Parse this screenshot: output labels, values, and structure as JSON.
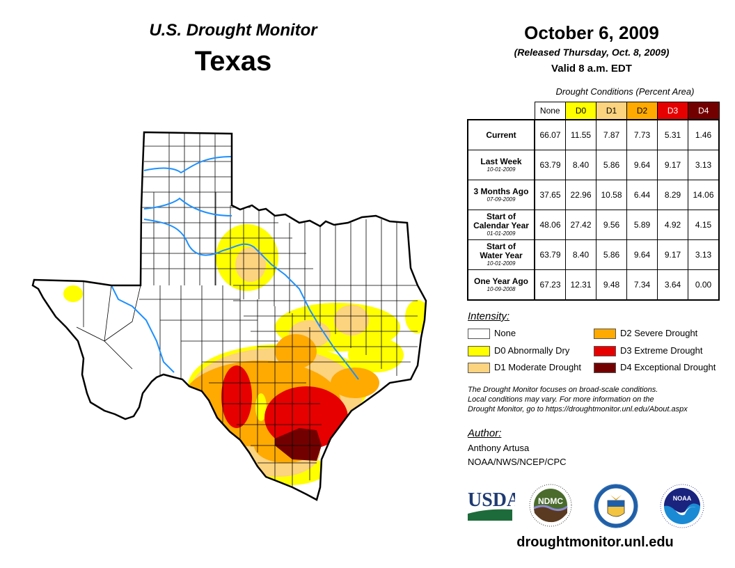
{
  "header": {
    "title": "U.S. Drought Monitor",
    "region": "Texas",
    "date": "October 6, 2009",
    "released": "(Released Thursday, Oct. 8, 2009)",
    "valid": "Valid 8 a.m. EDT"
  },
  "table": {
    "title": "Drought Conditions (Percent Area)",
    "columns": [
      "None",
      "D0",
      "D1",
      "D2",
      "D3",
      "D4"
    ],
    "column_colors": [
      "#ffffff",
      "#ffff00",
      "#fcd37f",
      "#ffaa00",
      "#e60000",
      "#730000"
    ],
    "rows": [
      {
        "label": "Current",
        "date": "",
        "values": [
          "66.07",
          "11.55",
          "7.87",
          "7.73",
          "5.31",
          "1.46"
        ]
      },
      {
        "label": "Last Week",
        "date": "10-01-2009",
        "values": [
          "63.79",
          "8.40",
          "5.86",
          "9.64",
          "9.17",
          "3.13"
        ]
      },
      {
        "label": "3 Months Ago",
        "date": "07-09-2009",
        "values": [
          "37.65",
          "22.96",
          "10.58",
          "6.44",
          "8.29",
          "14.06"
        ]
      },
      {
        "label_line1": "Start of",
        "label": "Calendar Year",
        "date": "01-01-2009",
        "values": [
          "48.06",
          "27.42",
          "9.56",
          "5.89",
          "4.92",
          "4.15"
        ]
      },
      {
        "label_line1": "Start of",
        "label": "Water Year",
        "date": "10-01-2009",
        "values": [
          "63.79",
          "8.40",
          "5.86",
          "9.64",
          "9.17",
          "3.13"
        ]
      },
      {
        "label": "One Year Ago",
        "date": "10-09-2008",
        "values": [
          "67.23",
          "12.31",
          "9.48",
          "7.34",
          "3.64",
          "0.00"
        ]
      }
    ]
  },
  "legend": {
    "title": "Intensity:",
    "items": [
      {
        "label": "None",
        "color": "#ffffff"
      },
      {
        "label": "D0 Abnormally Dry",
        "color": "#ffff00"
      },
      {
        "label": "D1 Moderate Drought",
        "color": "#fcd37f"
      },
      {
        "label": "D2 Severe Drought",
        "color": "#ffaa00"
      },
      {
        "label": "D3 Extreme Drought",
        "color": "#e60000"
      },
      {
        "label": "D4 Exceptional Drought",
        "color": "#730000"
      }
    ]
  },
  "note": {
    "line1": "The Drought Monitor focuses on broad-scale conditions.",
    "line2": "Local conditions may vary. For more information on the",
    "line3": "Drought Monitor, go to https://droughtmonitor.unl.edu/About.aspx"
  },
  "author": {
    "title": "Author:",
    "name": "Anthony Artusa",
    "org": "NOAA/NWS/NCEP/CPC"
  },
  "logos": {
    "usda": "USDA",
    "ndmc": "NDMC",
    "noaa": "NOAA"
  },
  "footer": {
    "site": "droughtmonitor.unl.edu"
  },
  "colors": {
    "river": "#1e90ff",
    "border": "#000000"
  }
}
